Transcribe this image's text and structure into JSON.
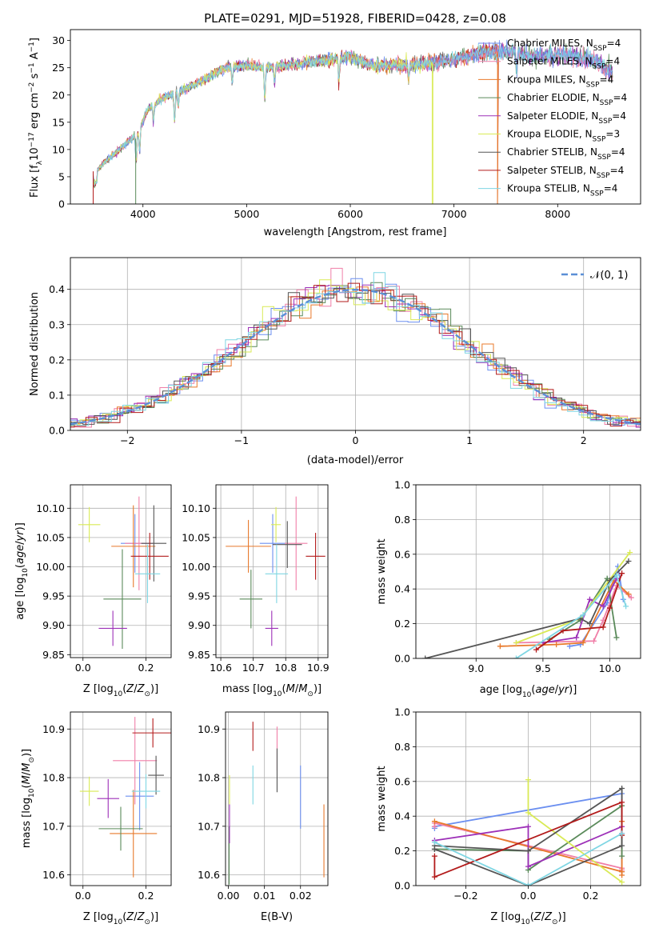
{
  "figure": {
    "background": "#ffffff",
    "title": "PLATE=0291, MJD=51928, FIBERID=0428, z=0.08"
  },
  "models": [
    {
      "name": "Chabrier MILES",
      "nssp": "4",
      "color": "#6b8ff0"
    },
    {
      "name": "Salpeter MILES",
      "nssp": "4",
      "color": "#f07fa8"
    },
    {
      "name": "Kroupa MILES",
      "nssp": "4",
      "color": "#e8792b"
    },
    {
      "name": "Chabrier ELODIE",
      "nssp": "4",
      "color": "#5a8a5a"
    },
    {
      "name": "Salpeter ELODIE",
      "nssp": "4",
      "color": "#9d30b8"
    },
    {
      "name": "Kroupa ELODIE",
      "nssp": "3",
      "color": "#d9ea55"
    },
    {
      "name": "Chabrier STELIB",
      "nssp": "4",
      "color": "#555555"
    },
    {
      "name": "Salpeter STELIB",
      "nssp": "4",
      "color": "#b31b1b"
    },
    {
      "name": "Kroupa STELIB",
      "nssp": "4",
      "color": "#7fd6e3"
    }
  ],
  "chart_data": [
    {
      "id": "spectrum",
      "type": "line",
      "xlabel": "wavelength [Angstrom, rest frame]",
      "ylabel": "Flux [f_λ10^-17 erg cm^-2 s^-1 A^-1]",
      "xlim": [
        3300,
        8800
      ],
      "ylim": [
        0,
        32
      ],
      "xticks": [
        4000,
        5000,
        6000,
        7000,
        8000
      ],
      "yticks": [
        0,
        5,
        10,
        15,
        20,
        25,
        30
      ],
      "legend": "upper right",
      "grid": false,
      "x_start": 3520,
      "x_end": 8530,
      "continuum": [
        [
          3520,
          5.5
        ],
        [
          3650,
          8
        ],
        [
          3800,
          10.5
        ],
        [
          3950,
          13
        ],
        [
          4050,
          17.5
        ],
        [
          4200,
          19.5
        ],
        [
          4400,
          21
        ],
        [
          4600,
          23
        ],
        [
          4800,
          25
        ],
        [
          5000,
          25.5
        ],
        [
          5200,
          25
        ],
        [
          5400,
          25.5
        ],
        [
          5600,
          26
        ],
        [
          5800,
          26.5
        ],
        [
          6000,
          27
        ],
        [
          6200,
          25.5
        ],
        [
          6400,
          25.5
        ],
        [
          6600,
          25.5
        ],
        [
          6800,
          26
        ],
        [
          7000,
          26.5
        ],
        [
          7200,
          27.5
        ],
        [
          7400,
          28
        ],
        [
          7600,
          28
        ],
        [
          7800,
          27
        ],
        [
          8000,
          27.5
        ],
        [
          8200,
          27
        ],
        [
          8350,
          26.5
        ],
        [
          8530,
          24
        ]
      ],
      "absorption_lines": [
        [
          3934,
          -5
        ],
        [
          3968,
          -4.5
        ],
        [
          4102,
          -3
        ],
        [
          4305,
          -5
        ],
        [
          4340,
          -3
        ],
        [
          4861,
          -3
        ],
        [
          5175,
          -6
        ],
        [
          5270,
          -3
        ],
        [
          5890,
          -4.5
        ],
        [
          6563,
          -2.5
        ],
        [
          7605,
          -3.5
        ]
      ],
      "spikes": [
        [
          3520,
          0
        ],
        [
          3930,
          0
        ],
        [
          6790,
          0
        ],
        [
          7420,
          0
        ],
        [
          7245,
          0
        ]
      ]
    },
    {
      "id": "residuals",
      "type": "histogram",
      "xlabel": "(data-model)/error",
      "ylabel": "Normed distribution",
      "xlim": [
        -2.5,
        2.5
      ],
      "ylim": [
        0,
        0.49
      ],
      "xticks": [
        -2,
        -1,
        0,
        1,
        2
      ],
      "yticks": [
        0.0,
        0.1,
        0.2,
        0.3,
        0.4
      ],
      "grid": true,
      "legend": "upper right",
      "reference": {
        "label": "𝒩(0, 1)",
        "color": "#5b8fd6",
        "mu": 0,
        "sigma": 1
      },
      "bin_width": 0.1
    },
    {
      "id": "age_vs_Z",
      "type": "errorbar",
      "xlabel": "Z [log10(Z/Z⊙)]",
      "ylabel": "age  [log10(age/yr)]",
      "xlim": [
        -0.04,
        0.28
      ],
      "ylim": [
        9.845,
        10.14
      ],
      "xticks": [
        0.0,
        0.2
      ],
      "yticks": [
        9.85,
        9.9,
        9.95,
        10.0,
        10.05,
        10.1
      ],
      "grid": true,
      "points": [
        {
          "x": 0.165,
          "y": 10.04,
          "xerr": 0.045,
          "yerr": 0.05
        },
        {
          "x": 0.178,
          "y": 10.04,
          "xerr": 0.045,
          "yerr": 0.08
        },
        {
          "x": 0.16,
          "y": 10.035,
          "xerr": 0.07,
          "yerr": 0.07
        },
        {
          "x": 0.125,
          "y": 9.945,
          "xerr": 0.06,
          "yerr": 0.085
        },
        {
          "x": 0.095,
          "y": 9.895,
          "xerr": 0.045,
          "yerr": 0.03
        },
        {
          "x": 0.02,
          "y": 10.072,
          "xerr": 0.035,
          "yerr": 0.03
        },
        {
          "x": 0.225,
          "y": 10.04,
          "xerr": 0.04,
          "yerr": 0.065
        },
        {
          "x": 0.212,
          "y": 10.018,
          "xerr": 0.06,
          "yerr": 0.04
        },
        {
          "x": 0.205,
          "y": 9.988,
          "xerr": 0.04,
          "yerr": 0.05
        }
      ]
    },
    {
      "id": "age_vs_mass",
      "type": "errorbar",
      "xlabel": "mass [log10(M/M⊙)]",
      "ylabel": "",
      "xlim": [
        10.585,
        10.93
      ],
      "ylim": [
        9.845,
        10.14
      ],
      "xticks": [
        10.6,
        10.7,
        10.8,
        10.9
      ],
      "yticks": [
        9.85,
        9.9,
        9.95,
        10.0,
        10.05,
        10.1
      ],
      "grid": true,
      "points": [
        {
          "x": 10.76,
          "y": 10.04,
          "xerr": 0.04,
          "yerr": 0.05
        },
        {
          "x": 10.832,
          "y": 10.04,
          "xerr": 0.035,
          "yerr": 0.08
        },
        {
          "x": 10.685,
          "y": 10.035,
          "xerr": 0.07,
          "yerr": 0.045
        },
        {
          "x": 10.693,
          "y": 9.945,
          "xerr": 0.035,
          "yerr": 0.05
        },
        {
          "x": 10.757,
          "y": 9.895,
          "xerr": 0.02,
          "yerr": 0.03
        },
        {
          "x": 10.77,
          "y": 10.072,
          "xerr": 0.015,
          "yerr": 0.03
        },
        {
          "x": 10.805,
          "y": 10.038,
          "xerr": 0.045,
          "yerr": 0.04
        },
        {
          "x": 10.892,
          "y": 10.018,
          "xerr": 0.03,
          "yerr": 0.04
        },
        {
          "x": 10.772,
          "y": 9.988,
          "xerr": 0.035,
          "yerr": 0.05
        }
      ]
    },
    {
      "id": "weight_vs_age",
      "type": "line",
      "xlabel": "age  [log10(age/yr)]",
      "ylabel": "mass weight",
      "xlim": [
        8.55,
        10.23
      ],
      "ylim": [
        0.0,
        1.0
      ],
      "xticks": [
        9.0,
        9.5,
        10.0
      ],
      "yticks": [
        0.0,
        0.2,
        0.4,
        0.6,
        0.8,
        1.0
      ],
      "grid": true,
      "series": [
        {
          "points": [
            [
              9.7,
              0.07
            ],
            [
              9.78,
              0.08
            ],
            [
              9.98,
              0.32
            ],
            [
              10.06,
              0.53
            ],
            [
              10.1,
              0.34
            ]
          ]
        },
        {
          "points": [
            [
              9.3,
              0.09
            ],
            [
              9.88,
              0.1
            ],
            [
              9.95,
              0.22
            ],
            [
              10.05,
              0.42
            ],
            [
              10.16,
              0.35
            ]
          ]
        },
        {
          "points": [
            [
              9.18,
              0.07
            ],
            [
              9.6,
              0.08
            ],
            [
              9.8,
              0.09
            ],
            [
              10.03,
              0.45
            ],
            [
              10.14,
              0.37
            ]
          ]
        },
        {
          "points": [
            [
              9.55,
              0.11
            ],
            [
              9.78,
              0.22
            ],
            [
              9.98,
              0.46
            ],
            [
              10.05,
              0.12
            ]
          ]
        },
        {
          "points": [
            [
              9.5,
              0.09
            ],
            [
              9.75,
              0.12
            ],
            [
              9.85,
              0.34
            ],
            [
              9.95,
              0.3
            ],
            [
              10.05,
              0.46
            ]
          ]
        },
        {
          "points": [
            [
              9.3,
              0.09
            ],
            [
              9.78,
              0.23
            ],
            [
              10.15,
              0.61
            ]
          ]
        },
        {
          "points": [
            [
              8.62,
              0.0
            ],
            [
              9.78,
              0.23
            ],
            [
              9.85,
              0.2
            ],
            [
              10.0,
              0.45
            ],
            [
              10.14,
              0.56
            ]
          ]
        },
        {
          "points": [
            [
              9.45,
              0.05
            ],
            [
              9.65,
              0.16
            ],
            [
              9.95,
              0.18
            ],
            [
              10.0,
              0.29
            ],
            [
              10.09,
              0.49
            ]
          ]
        },
        {
          "points": [
            [
              9.3,
              0.0
            ],
            [
              9.8,
              0.25
            ],
            [
              10.05,
              0.48
            ],
            [
              10.12,
              0.3
            ]
          ]
        }
      ]
    },
    {
      "id": "mass_vs_Z",
      "type": "errorbar",
      "xlabel": "Z [log10(Z/Z⊙)]",
      "ylabel": "mass [log10(M/M⊙)]",
      "xlim": [
        -0.04,
        0.28
      ],
      "ylim": [
        10.578,
        10.935
      ],
      "xticks": [
        0.0,
        0.2
      ],
      "yticks": [
        10.6,
        10.7,
        10.8,
        10.9
      ],
      "grid": true,
      "points": [
        {
          "x": 0.18,
          "y": 10.762,
          "xerr": 0.045,
          "yerr": 0.07
        },
        {
          "x": 0.165,
          "y": 10.835,
          "xerr": 0.07,
          "yerr": 0.09
        },
        {
          "x": 0.16,
          "y": 10.685,
          "xerr": 0.075,
          "yerr": 0.09
        },
        {
          "x": 0.12,
          "y": 10.695,
          "xerr": 0.07,
          "yerr": 0.045
        },
        {
          "x": 0.08,
          "y": 10.757,
          "xerr": 0.035,
          "yerr": 0.04
        },
        {
          "x": 0.02,
          "y": 10.772,
          "xerr": 0.03,
          "yerr": 0.03
        },
        {
          "x": 0.232,
          "y": 10.805,
          "xerr": 0.025,
          "yerr": 0.04
        },
        {
          "x": 0.222,
          "y": 10.892,
          "xerr": 0.065,
          "yerr": 0.03
        },
        {
          "x": 0.2,
          "y": 10.772,
          "xerr": 0.045,
          "yerr": 0.035
        }
      ]
    },
    {
      "id": "mass_vs_ebv",
      "type": "errorbar",
      "xlabel": "E(B-V)",
      "ylabel": "",
      "xlim": [
        -0.0008,
        0.0276
      ],
      "ylim": [
        10.578,
        10.935
      ],
      "xticks": [
        0.0,
        0.01,
        0.02
      ],
      "yticks": [
        10.6,
        10.7,
        10.8,
        10.9
      ],
      "grid": true,
      "points": [
        {
          "x": 0.02,
          "y": 10.76,
          "xerr": 0,
          "yerr": 0.065
        },
        {
          "x": 0.0135,
          "y": 10.86,
          "xerr": 0,
          "yerr": 0.045
        },
        {
          "x": 0.0265,
          "y": 10.67,
          "xerr": 0,
          "yerr": 0.075
        },
        {
          "x": 0.0002,
          "y": 10.64,
          "xerr": 0,
          "yerr": 0.06
        },
        {
          "x": 0.0003,
          "y": 10.705,
          "xerr": 0,
          "yerr": 0.04
        },
        {
          "x": 0.0003,
          "y": 10.775,
          "xerr": 0,
          "yerr": 0.03
        },
        {
          "x": 0.0135,
          "y": 10.815,
          "xerr": 0,
          "yerr": 0.045
        },
        {
          "x": 0.0068,
          "y": 10.885,
          "xerr": 0,
          "yerr": 0.03
        },
        {
          "x": 0.0068,
          "y": 10.785,
          "xerr": 0,
          "yerr": 0.04
        }
      ]
    },
    {
      "id": "weight_vs_Z",
      "type": "line",
      "xlabel": "Z [log10(Z/Z⊙)]",
      "ylabel": "mass weight",
      "xlim": [
        -0.36,
        0.36
      ],
      "ylim": [
        0.0,
        1.0
      ],
      "xticks": [
        -0.2,
        0.0,
        0.2
      ],
      "yticks": [
        0.0,
        0.2,
        0.4,
        0.6,
        0.8,
        1.0
      ],
      "grid": true,
      "series": [
        {
          "points": [
            [
              -0.3,
              0.33
            ],
            [
              -0.3,
              0.34
            ],
            [
              0.3,
              0.53
            ],
            [
              0.3,
              0.08
            ]
          ]
        },
        {
          "points": [
            [
              -0.3,
              0.34
            ],
            [
              -0.3,
              0.36
            ],
            [
              0.3,
              0.1
            ],
            [
              0.3,
              0.09
            ]
          ]
        },
        {
          "points": [
            [
              -0.3,
              0.37
            ],
            [
              0.3,
              0.08
            ],
            [
              0.3,
              0.06
            ],
            [
              0.3,
              0.37
            ]
          ]
        },
        {
          "points": [
            [
              -0.3,
              0.21
            ],
            [
              0.0,
              0.2
            ],
            [
              0.0,
              0.09
            ],
            [
              0.3,
              0.46
            ],
            [
              0.3,
              0.17
            ]
          ]
        },
        {
          "points": [
            [
              -0.3,
              0.26
            ],
            [
              0.0,
              0.34
            ],
            [
              0.0,
              0.11
            ],
            [
              0.3,
              0.34
            ],
            [
              0.3,
              0.3
            ]
          ]
        },
        {
          "points": [
            [
              0.0,
              0.61
            ],
            [
              0.0,
              0.42
            ],
            [
              0.3,
              0.02
            ]
          ]
        },
        {
          "points": [
            [
              -0.3,
              0.23
            ],
            [
              0.0,
              0.2
            ],
            [
              0.3,
              0.56
            ],
            [
              0.3,
              0.23
            ],
            [
              0.0,
              0.0
            ],
            [
              -0.3,
              0.21
            ]
          ]
        },
        {
          "points": [
            [
              -0.3,
              0.17
            ],
            [
              -0.3,
              0.05
            ],
            [
              0.3,
              0.48
            ],
            [
              0.3,
              0.29
            ]
          ]
        },
        {
          "points": [
            [
              -0.3,
              0.25
            ],
            [
              0.0,
              0.0
            ],
            [
              0.3,
              0.3
            ]
          ]
        }
      ]
    }
  ]
}
